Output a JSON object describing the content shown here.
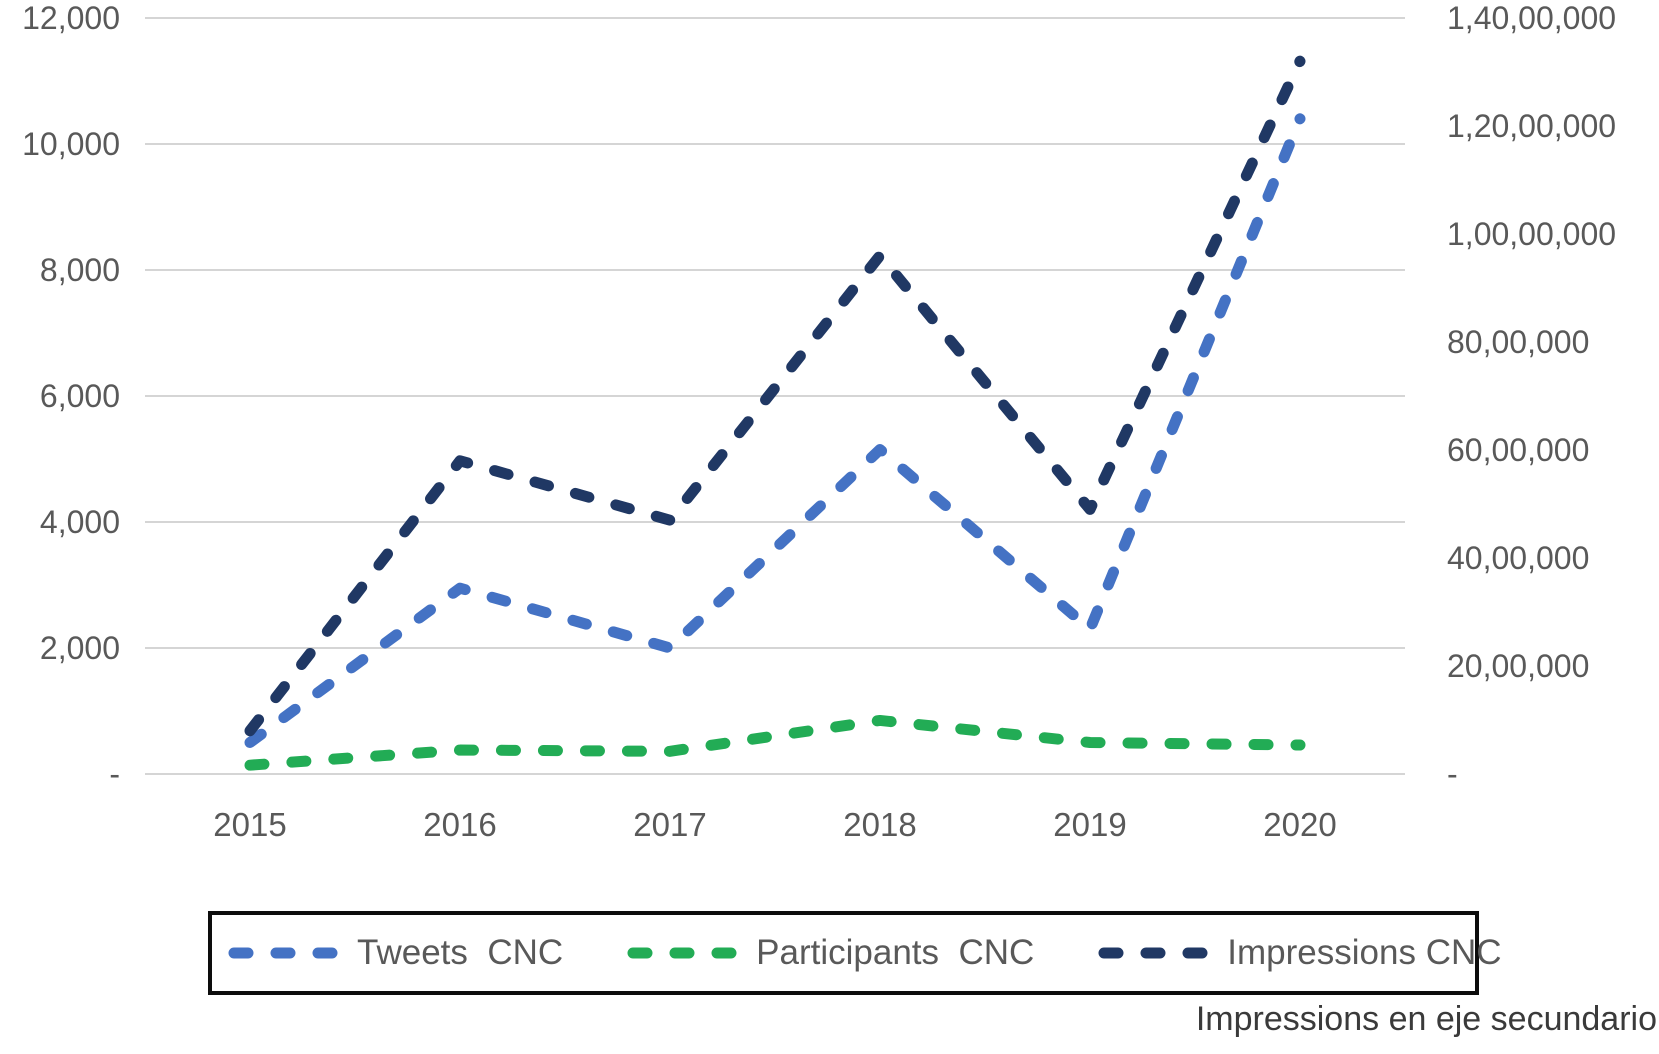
{
  "chart_data": {
    "type": "line",
    "title": "",
    "line_style": "dashed",
    "grid": true,
    "legend_position": "bottom",
    "categories": [
      "2015",
      "2016",
      "2017",
      "2018",
      "2019",
      "2020"
    ],
    "series": [
      {
        "name": "Tweets  CNC",
        "axis": "primary",
        "color": "#4472C4",
        "values": [
          500,
          2950,
          2000,
          5150,
          2300,
          10400
        ]
      },
      {
        "name": "Participants  CNC",
        "axis": "primary",
        "color": "#22AC55",
        "values": [
          140,
          380,
          360,
          850,
          500,
          460
        ]
      },
      {
        "name": "Impressions CNC",
        "axis": "secondary",
        "color": "#203864",
        "values": [
          800000,
          5800000,
          4700000,
          9600000,
          4900000,
          13200000
        ]
      }
    ],
    "primary_axis": {
      "min": 0,
      "max": 12000,
      "step": 2000,
      "labels": [
        "-",
        "2,000",
        "4,000",
        "6,000",
        "8,000",
        "10,000",
        "12,000"
      ]
    },
    "secondary_axis": {
      "min": 0,
      "max": 14000000,
      "step": 2000000,
      "labels": [
        "-",
        "20,00,000",
        "40,00,000",
        "60,00,000",
        "80,00,000",
        "1,00,00,000",
        "1,20,00,000",
        "1,40,00,000"
      ]
    }
  },
  "footnote": {
    "text": "Impressions en eje secundario"
  },
  "colors": {
    "gridline": "#D5D5D5",
    "axis_text": "#595959",
    "footnote_text": "#3A3A3A",
    "legend_border": "#0D0D0D",
    "background": "#FFFFFF"
  }
}
